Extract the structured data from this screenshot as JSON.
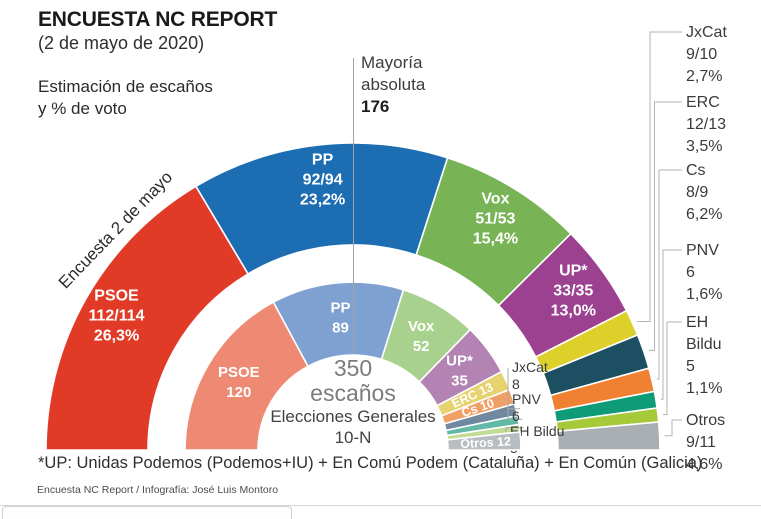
{
  "header": {
    "title": "ENCUESTA NC REPORT",
    "date": "(2 de mayo de 2020)",
    "subtitle1": "Estimación de escaños",
    "subtitle2": "y % de voto"
  },
  "majority": {
    "word1": "Mayoría",
    "word2": "absoluta",
    "value": "176"
  },
  "arc_annotation": "Encuesta 2 de mayo",
  "center_label": {
    "total": "350",
    "unit": "escaños",
    "election": "Elecciones Generales",
    "election_date": "10-N"
  },
  "footnote": "*UP: Unidas Podemos (Podemos+IU) + En Comú Podem (Cataluña) + En Común (Galicia)",
  "credit": "Encuesta NC Report / Infografía: José Luis Montoro",
  "chart_data": {
    "type": "pie",
    "variant": "double-ring-hemicycle",
    "total_seats": 350,
    "absolute_majority": 176,
    "legend_position": "right",
    "rings": [
      {
        "id": "outer",
        "name": "Encuesta 2 de mayo",
        "parties": [
          {
            "name": "PSOE",
            "seats": "112/114",
            "seats_min": 112,
            "seats_max": 114,
            "pct": "26,3%",
            "color": "#e13b28",
            "label": "band"
          },
          {
            "name": "PP",
            "seats": "92/94",
            "seats_min": 92,
            "seats_max": 94,
            "pct": "23,2%",
            "color": "#1d6db3",
            "label": "band"
          },
          {
            "name": "Vox",
            "seats": "51/53",
            "seats_min": 51,
            "seats_max": 53,
            "pct": "15,4%",
            "color": "#78b455",
            "label": "band"
          },
          {
            "name": "UP*",
            "seats": "33/35",
            "seats_min": 33,
            "seats_max": 35,
            "pct": "13,0%",
            "color": "#9c4190",
            "label": "band"
          },
          {
            "name": "JxCat",
            "seats": "9/10",
            "seats_min": 9,
            "seats_max": 10,
            "pct": "2,7%",
            "color": "#ded02a",
            "label": "leader"
          },
          {
            "name": "ERC",
            "seats": "12/13",
            "seats_min": 12,
            "seats_max": 13,
            "pct": "3,5%",
            "color": "#1d4f63",
            "label": "leader"
          },
          {
            "name": "Cs",
            "seats": "8/9",
            "seats_min": 8,
            "seats_max": 9,
            "pct": "6,2%",
            "color": "#f08133",
            "label": "leader"
          },
          {
            "name": "PNV",
            "seats": "6",
            "seats_min": 6,
            "seats_max": 6,
            "pct": "1,6%",
            "color": "#0e9b78",
            "label": "leader"
          },
          {
            "name": "EH Bildu",
            "seats": "5",
            "seats_min": 5,
            "seats_max": 5,
            "pct": "1,1%",
            "color": "#a6c93a",
            "label": "leader"
          },
          {
            "name": "Otros",
            "seats": "9/11",
            "seats_min": 9,
            "seats_max": 11,
            "pct": "4,6%",
            "color": "#a9aeb3",
            "label": "leader"
          }
        ]
      },
      {
        "id": "inner",
        "name": "Elecciones Generales 10-N",
        "parties": [
          {
            "name": "PSOE",
            "seats": 120,
            "color": "#ee8a73",
            "label": "band"
          },
          {
            "name": "PP",
            "seats": 89,
            "color": "#7fa1d2",
            "label": "band"
          },
          {
            "name": "Vox",
            "seats": 52,
            "color": "#a8d18d",
            "label": "band"
          },
          {
            "name": "UP*",
            "seats": 35,
            "color": "#b283b3",
            "label": "band"
          },
          {
            "name": "ERC",
            "seats": 13,
            "color": "#e6d26f",
            "label": "band-rotated"
          },
          {
            "name": "Cs",
            "seats": 10,
            "color": "#f0a066",
            "label": "band-rotated"
          },
          {
            "name": "JxCat",
            "seats": 8,
            "color": "#7089a1",
            "label": "leader"
          },
          {
            "name": "PNV",
            "seats": 6,
            "color": "#63b8a6",
            "label": "leader"
          },
          {
            "name": "EH Bildu",
            "seats": 5,
            "color": "#c3dc95",
            "label": "leader"
          },
          {
            "name": "Otros",
            "seats": 12,
            "color": "#b8bdc2",
            "label": "band-rotated"
          }
        ]
      }
    ]
  }
}
